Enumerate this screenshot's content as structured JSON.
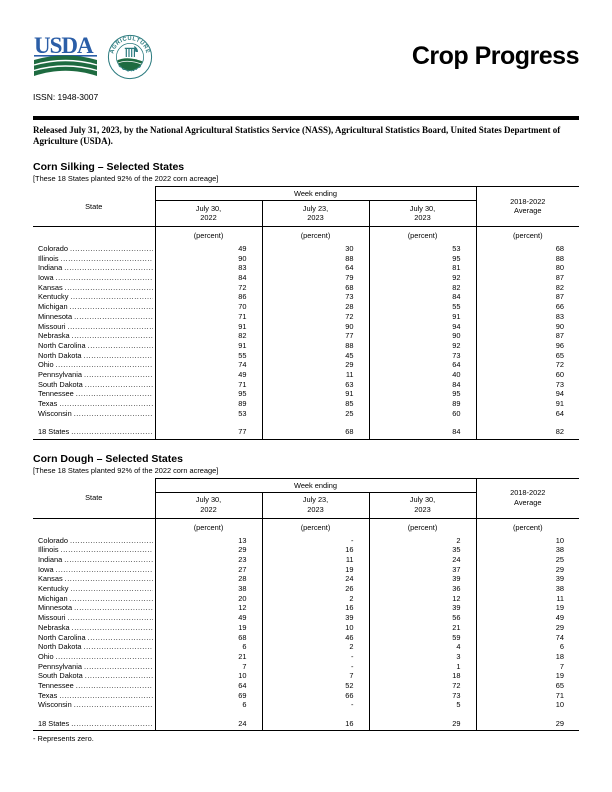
{
  "header": {
    "title": "Crop Progress",
    "issn": "ISSN: 1948-3007",
    "released_line": "Released July 31, 2023, by the National Agricultural Statistics Service (NASS), Agricultural Statistics Board, United States Department of Agriculture (USDA).",
    "logo": {
      "usda_text": "USDA",
      "seal_top": "AGRICULTURE",
      "seal_bottom": "COUNTS"
    }
  },
  "colors": {
    "usda_blue": "#2b5ea7",
    "usda_green": "#1e6b40",
    "seal_teal": "#2a7a7e",
    "text": "#000000",
    "background": "#ffffff"
  },
  "tables": [
    {
      "title": "Corn Silking – Selected States",
      "note": "[These 18 States planted 92% of the 2022 corn acreage]",
      "state_header": "State",
      "col_group_header": "Week ending",
      "avg_header": [
        "2018-2022",
        "Average"
      ],
      "date_headers": [
        [
          "July 30,",
          "2022"
        ],
        [
          "July 23,",
          "2023"
        ],
        [
          "July 30,",
          "2023"
        ]
      ],
      "unit_label": "(percent)",
      "rows": [
        {
          "state": "Colorado",
          "values": [
            "49",
            "30",
            "53",
            "68"
          ]
        },
        {
          "state": "Illinois",
          "values": [
            "90",
            "88",
            "95",
            "88"
          ]
        },
        {
          "state": "Indiana",
          "values": [
            "83",
            "64",
            "81",
            "80"
          ]
        },
        {
          "state": "Iowa",
          "values": [
            "84",
            "79",
            "92",
            "87"
          ]
        },
        {
          "state": "Kansas",
          "values": [
            "72",
            "68",
            "82",
            "82"
          ]
        },
        {
          "state": "Kentucky",
          "values": [
            "86",
            "73",
            "84",
            "87"
          ]
        },
        {
          "state": "Michigan",
          "values": [
            "70",
            "28",
            "55",
            "66"
          ]
        },
        {
          "state": "Minnesota",
          "values": [
            "71",
            "72",
            "91",
            "83"
          ]
        },
        {
          "state": "Missouri",
          "values": [
            "91",
            "90",
            "94",
            "90"
          ]
        },
        {
          "state": "Nebraska",
          "values": [
            "82",
            "77",
            "90",
            "87"
          ]
        },
        {
          "state": "North Carolina",
          "values": [
            "91",
            "88",
            "92",
            "96"
          ]
        },
        {
          "state": "North Dakota",
          "values": [
            "55",
            "45",
            "73",
            "65"
          ]
        },
        {
          "state": "Ohio",
          "values": [
            "74",
            "29",
            "64",
            "72"
          ]
        },
        {
          "state": "Pennsylvania",
          "values": [
            "49",
            "11",
            "40",
            "60"
          ]
        },
        {
          "state": "South Dakota",
          "values": [
            "71",
            "63",
            "84",
            "73"
          ]
        },
        {
          "state": "Tennessee",
          "values": [
            "95",
            "91",
            "95",
            "94"
          ]
        },
        {
          "state": "Texas",
          "values": [
            "89",
            "85",
            "89",
            "91"
          ]
        },
        {
          "state": "Wisconsin",
          "values": [
            "53",
            "25",
            "60",
            "64"
          ]
        }
      ],
      "total_row": {
        "state": "18 States",
        "values": [
          "77",
          "68",
          "84",
          "82"
        ]
      },
      "footnote": ""
    },
    {
      "title": "Corn Dough – Selected States",
      "note": "[These 18 States planted 92% of the 2022 corn acreage]",
      "state_header": "State",
      "col_group_header": "Week ending",
      "avg_header": [
        "2018-2022",
        "Average"
      ],
      "date_headers": [
        [
          "July 30,",
          "2022"
        ],
        [
          "July 23,",
          "2023"
        ],
        [
          "July 30,",
          "2023"
        ]
      ],
      "unit_label": "(percent)",
      "rows": [
        {
          "state": "Colorado",
          "values": [
            "13",
            "-",
            "2",
            "10"
          ]
        },
        {
          "state": "Illinois",
          "values": [
            "29",
            "16",
            "35",
            "38"
          ]
        },
        {
          "state": "Indiana",
          "values": [
            "23",
            "11",
            "24",
            "25"
          ]
        },
        {
          "state": "Iowa",
          "values": [
            "27",
            "19",
            "37",
            "29"
          ]
        },
        {
          "state": "Kansas",
          "values": [
            "28",
            "24",
            "39",
            "39"
          ]
        },
        {
          "state": "Kentucky",
          "values": [
            "38",
            "26",
            "36",
            "38"
          ]
        },
        {
          "state": "Michigan",
          "values": [
            "20",
            "2",
            "12",
            "11"
          ]
        },
        {
          "state": "Minnesota",
          "values": [
            "12",
            "16",
            "39",
            "19"
          ]
        },
        {
          "state": "Missouri",
          "values": [
            "49",
            "39",
            "56",
            "49"
          ]
        },
        {
          "state": "Nebraska",
          "values": [
            "19",
            "10",
            "21",
            "29"
          ]
        },
        {
          "state": "North Carolina",
          "values": [
            "68",
            "46",
            "59",
            "74"
          ]
        },
        {
          "state": "North Dakota",
          "values": [
            "6",
            "2",
            "4",
            "6"
          ]
        },
        {
          "state": "Ohio",
          "values": [
            "21",
            "-",
            "3",
            "18"
          ]
        },
        {
          "state": "Pennsylvania",
          "values": [
            "7",
            "-",
            "1",
            "7"
          ]
        },
        {
          "state": "South Dakota",
          "values": [
            "10",
            "7",
            "18",
            "19"
          ]
        },
        {
          "state": "Tennessee",
          "values": [
            "64",
            "52",
            "72",
            "65"
          ]
        },
        {
          "state": "Texas",
          "values": [
            "69",
            "66",
            "73",
            "71"
          ]
        },
        {
          "state": "Wisconsin",
          "values": [
            "6",
            "-",
            "5",
            "10"
          ]
        }
      ],
      "total_row": {
        "state": "18 States",
        "values": [
          "24",
          "16",
          "29",
          "29"
        ]
      },
      "footnote": "- Represents zero."
    }
  ]
}
